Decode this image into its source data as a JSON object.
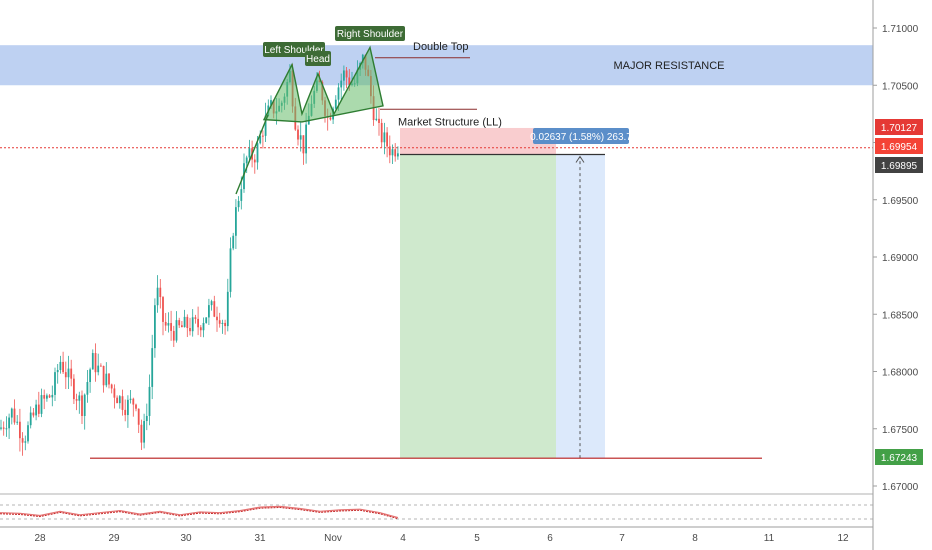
{
  "chart_data": {
    "type": "candlestick",
    "instrument_visible_name": "",
    "y_axis": {
      "ticks": [
        "1.71000",
        "1.70500",
        "1.70000",
        "1.69500",
        "1.69000",
        "1.68500",
        "1.68000",
        "1.67500",
        "1.67000"
      ],
      "ylim": [
        1.6695,
        1.7118
      ]
    },
    "x_axis": {
      "ticks": [
        "28",
        "29",
        "30",
        "31",
        "Nov",
        "4",
        "5",
        "6",
        "7",
        "8",
        "11",
        "12"
      ]
    },
    "price_badges": {
      "red": "1.70127",
      "current": "1.69954",
      "dark": "1.69895",
      "green": "1.67243"
    },
    "price_levels": {
      "resistance_top": 1.7085,
      "resistance_bottom": 1.705,
      "double_top": 1.7074,
      "market_structure": 1.7029,
      "current_price": 1.69954,
      "entry": 1.69895,
      "stop": 1.70127,
      "target": 1.67243
    },
    "annotations": {
      "major_resistance": "MAJOR RESISTANCE",
      "double_top": "Double Top",
      "market_structure": "Market Structure (LL)",
      "left_shoulder": "Left Shoulder",
      "head": "Head",
      "right_shoulder": "Right Shoulder",
      "measure": "0.02637 (1.58%) 263.7"
    },
    "candle_anchors": [
      [
        0,
        1.675
      ],
      [
        12,
        1.6765
      ],
      [
        24,
        1.6742
      ],
      [
        38,
        1.677
      ],
      [
        52,
        1.678
      ],
      [
        60,
        1.681
      ],
      [
        68,
        1.6795
      ],
      [
        82,
        1.677
      ],
      [
        92,
        1.681
      ],
      [
        104,
        1.6795
      ],
      [
        116,
        1.678
      ],
      [
        126,
        1.677
      ],
      [
        136,
        1.6775
      ],
      [
        142,
        1.6735
      ],
      [
        150,
        1.679
      ],
      [
        156,
        1.6875
      ],
      [
        164,
        1.684
      ],
      [
        174,
        1.6835
      ],
      [
        186,
        1.684
      ],
      [
        198,
        1.684
      ],
      [
        210,
        1.6855
      ],
      [
        220,
        1.685
      ],
      [
        226,
        1.6838
      ],
      [
        232,
        1.692
      ],
      [
        240,
        1.696
      ],
      [
        246,
        1.6985
      ],
      [
        256,
        1.699
      ],
      [
        262,
        1.701
      ],
      [
        270,
        1.703
      ],
      [
        280,
        1.703
      ],
      [
        290,
        1.706
      ],
      [
        296,
        1.7015
      ],
      [
        304,
        1.6995
      ],
      [
        312,
        1.704
      ],
      [
        320,
        1.705
      ],
      [
        328,
        1.702
      ],
      [
        336,
        1.7045
      ],
      [
        344,
        1.706
      ],
      [
        354,
        1.705
      ],
      [
        364,
        1.7075
      ],
      [
        372,
        1.7035
      ],
      [
        378,
        1.701
      ],
      [
        384,
        1.7002
      ],
      [
        392,
        1.6992
      ],
      [
        398,
        1.6998
      ]
    ],
    "oscillator": [
      [
        0,
        0.45
      ],
      [
        20,
        0.4
      ],
      [
        40,
        0.25
      ],
      [
        60,
        0.55
      ],
      [
        80,
        0.3
      ],
      [
        100,
        0.45
      ],
      [
        120,
        0.6
      ],
      [
        140,
        0.35
      ],
      [
        160,
        0.55
      ],
      [
        180,
        0.3
      ],
      [
        200,
        0.5
      ],
      [
        220,
        0.45
      ],
      [
        240,
        0.6
      ],
      [
        260,
        0.85
      ],
      [
        280,
        0.9
      ],
      [
        300,
        0.75
      ],
      [
        320,
        0.55
      ],
      [
        340,
        0.65
      ],
      [
        360,
        0.7
      ],
      [
        380,
        0.45
      ],
      [
        398,
        0.1
      ]
    ]
  }
}
